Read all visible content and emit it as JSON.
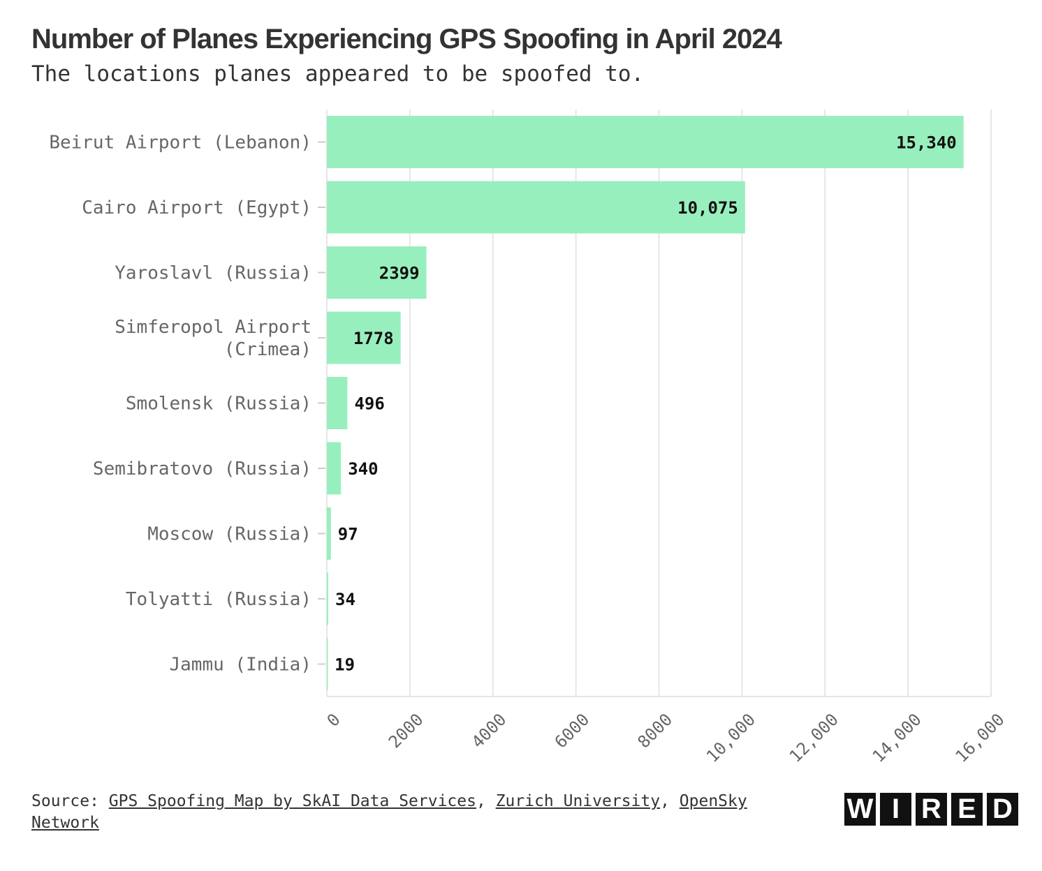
{
  "title": "Number of Planes Experiencing GPS Spoofing in April 2024",
  "subtitle": "The locations planes appeared to be spoofed to.",
  "colors": {
    "bar": "#98efbe",
    "grid": "#e6e6e6",
    "text": "#333333"
  },
  "chart_data": {
    "type": "bar",
    "orientation": "horizontal",
    "categories": [
      "Beirut Airport (Lebanon)",
      "Cairo Airport (Egypt)",
      "Yaroslavl (Russia)",
      "Simferopol Airport (Crimea)",
      "Smolensk (Russia)",
      "Semibratovo (Russia)",
      "Moscow (Russia)",
      "Tolyatti (Russia)",
      "Jammu (India)"
    ],
    "values": [
      15340,
      10075,
      2399,
      1778,
      496,
      340,
      97,
      34,
      19
    ],
    "value_labels": [
      "15,340",
      "10,075",
      "2399",
      "1778",
      "496",
      "340",
      "97",
      "34",
      "19"
    ],
    "x_ticks": [
      0,
      2000,
      4000,
      6000,
      8000,
      10000,
      12000,
      14000,
      16000
    ],
    "x_tick_labels": [
      "0",
      "2000",
      "4000",
      "6000",
      "8000",
      "10,000",
      "12,000",
      "14,000",
      "16,000"
    ],
    "xlim": [
      0,
      16000
    ],
    "grid": true
  },
  "source": {
    "prefix": "Source: ",
    "links": [
      "GPS Spoofing Map by SkAI Data Services",
      "Zurich University",
      "OpenSky Network"
    ],
    "separator": ", "
  },
  "logo": {
    "letters": [
      "W",
      "I",
      "R",
      "E",
      "D"
    ]
  }
}
